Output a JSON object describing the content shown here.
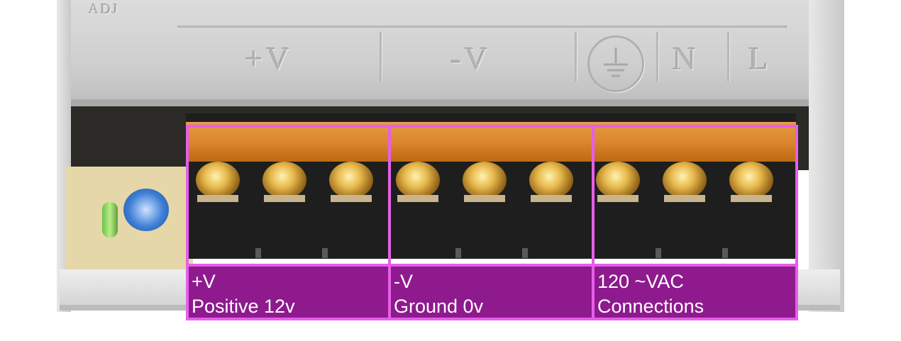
{
  "case_markings": {
    "positive": "+V",
    "negative": "-V",
    "neutral": "N",
    "line": "L",
    "adjust": "ADJ"
  },
  "terminal_groups": [
    {
      "title": "+V",
      "subtitle": "Positive 12v"
    },
    {
      "title": "-V",
      "subtitle": "Ground 0v"
    },
    {
      "title": "120 ~VAC",
      "subtitle": "Connections"
    }
  ],
  "colors": {
    "label_fill": "#8e1a8e",
    "label_border": "#e55fe8",
    "cover_orange": "#e58c2c"
  }
}
